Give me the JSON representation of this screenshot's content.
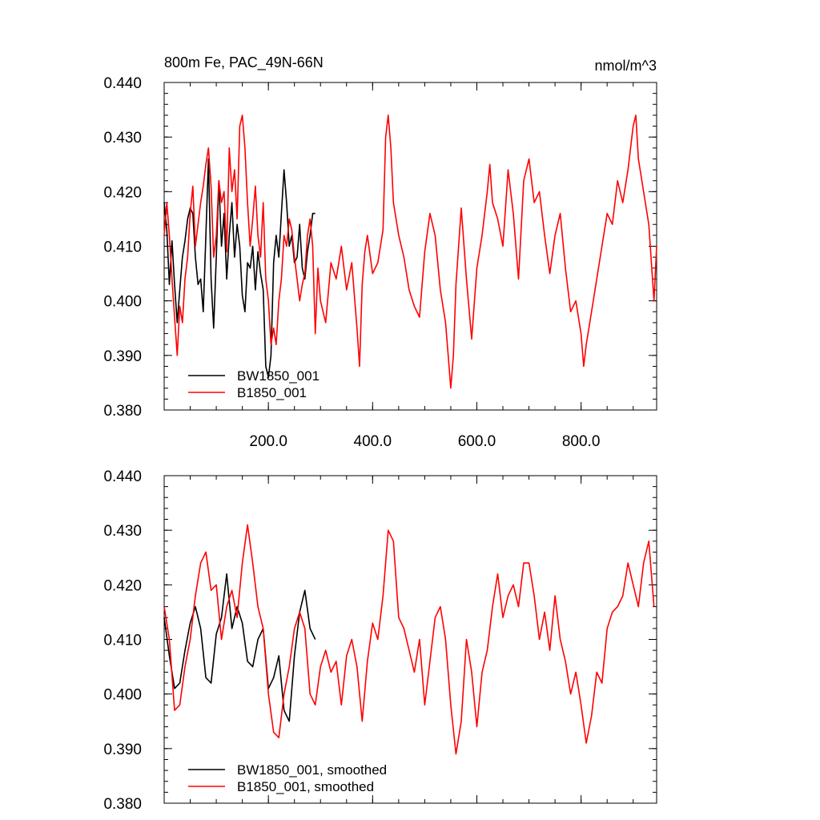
{
  "chart_data": [
    {
      "type": "line",
      "title": "800m Fe, PAC_49N-66N",
      "units": "nmol/m^3",
      "xlim": [
        0,
        945
      ],
      "ylim": [
        0.38,
        0.44
      ],
      "x_ticks": [
        200,
        400,
        600,
        800
      ],
      "x_tick_labels": [
        "200.0",
        "400.0",
        "600.0",
        "800.0"
      ],
      "y_ticks": [
        0.38,
        0.39,
        0.4,
        0.41,
        0.42,
        0.43,
        0.44
      ],
      "y_tick_labels": [
        "0.380",
        "0.390",
        "0.400",
        "0.410",
        "0.420",
        "0.430",
        "0.440"
      ],
      "grid": false,
      "legend_position": "bottom-left",
      "series": [
        {
          "name": "BW1850_001",
          "color": "#000000",
          "x": [
            0,
            5,
            10,
            15,
            20,
            25,
            30,
            35,
            40,
            45,
            50,
            55,
            60,
            65,
            70,
            75,
            80,
            85,
            90,
            95,
            100,
            105,
            110,
            115,
            120,
            125,
            130,
            135,
            140,
            145,
            150,
            155,
            160,
            165,
            170,
            175,
            180,
            185,
            190,
            195,
            200,
            205,
            210,
            215,
            220,
            225,
            230,
            235,
            240,
            245,
            250,
            255,
            260,
            265,
            270,
            275,
            280,
            285,
            290
          ],
          "values": [
            0.418,
            0.413,
            0.403,
            0.411,
            0.403,
            0.396,
            0.402,
            0.408,
            0.411,
            0.415,
            0.417,
            0.416,
            0.408,
            0.403,
            0.404,
            0.398,
            0.412,
            0.426,
            0.404,
            0.395,
            0.408,
            0.422,
            0.41,
            0.416,
            0.404,
            0.412,
            0.418,
            0.408,
            0.414,
            0.41,
            0.401,
            0.398,
            0.407,
            0.406,
            0.41,
            0.402,
            0.409,
            0.405,
            0.402,
            0.388,
            0.386,
            0.39,
            0.407,
            0.412,
            0.408,
            0.416,
            0.424,
            0.418,
            0.41,
            0.412,
            0.407,
            0.408,
            0.414,
            0.406,
            0.404,
            0.409,
            0.412,
            0.416,
            0.416
          ]
        },
        {
          "name": "B1850_001",
          "color": "#ff0000",
          "x": [
            0,
            5,
            10,
            15,
            20,
            25,
            30,
            35,
            40,
            45,
            50,
            55,
            60,
            65,
            70,
            75,
            80,
            85,
            90,
            95,
            100,
            105,
            110,
            115,
            120,
            125,
            130,
            135,
            140,
            145,
            150,
            155,
            160,
            165,
            170,
            175,
            180,
            185,
            190,
            195,
            200,
            205,
            210,
            215,
            220,
            225,
            230,
            235,
            240,
            245,
            250,
            255,
            260,
            265,
            270,
            275,
            280,
            285,
            290,
            295,
            300,
            310,
            320,
            330,
            340,
            350,
            360,
            370,
            375,
            380,
            385,
            390,
            400,
            410,
            420,
            425,
            430,
            435,
            440,
            450,
            460,
            470,
            480,
            490,
            500,
            510,
            520,
            530,
            540,
            545,
            550,
            555,
            560,
            565,
            570,
            580,
            590,
            600,
            610,
            620,
            625,
            630,
            640,
            650,
            660,
            670,
            680,
            690,
            700,
            710,
            720,
            730,
            740,
            750,
            760,
            770,
            780,
            790,
            800,
            805,
            810,
            820,
            830,
            840,
            850,
            860,
            870,
            880,
            890,
            900,
            905,
            910,
            920,
            930,
            940,
            945
          ],
          "values": [
            0.412,
            0.418,
            0.412,
            0.404,
            0.397,
            0.39,
            0.399,
            0.396,
            0.404,
            0.408,
            0.416,
            0.421,
            0.41,
            0.414,
            0.418,
            0.421,
            0.425,
            0.428,
            0.421,
            0.408,
            0.412,
            0.422,
            0.418,
            0.42,
            0.409,
            0.428,
            0.42,
            0.424,
            0.415,
            0.432,
            0.434,
            0.428,
            0.418,
            0.41,
            0.415,
            0.421,
            0.412,
            0.408,
            0.418,
            0.404,
            0.4,
            0.392,
            0.395,
            0.392,
            0.4,
            0.404,
            0.412,
            0.41,
            0.415,
            0.413,
            0.408,
            0.404,
            0.4,
            0.403,
            0.405,
            0.412,
            0.415,
            0.41,
            0.394,
            0.406,
            0.4,
            0.396,
            0.407,
            0.404,
            0.41,
            0.402,
            0.407,
            0.395,
            0.388,
            0.403,
            0.409,
            0.412,
            0.405,
            0.407,
            0.413,
            0.43,
            0.434,
            0.428,
            0.418,
            0.412,
            0.408,
            0.402,
            0.399,
            0.397,
            0.409,
            0.416,
            0.412,
            0.402,
            0.396,
            0.39,
            0.384,
            0.39,
            0.403,
            0.41,
            0.417,
            0.404,
            0.393,
            0.406,
            0.412,
            0.42,
            0.425,
            0.418,
            0.415,
            0.41,
            0.424,
            0.416,
            0.404,
            0.422,
            0.426,
            0.418,
            0.42,
            0.412,
            0.405,
            0.412,
            0.416,
            0.406,
            0.398,
            0.4,
            0.394,
            0.388,
            0.392,
            0.398,
            0.404,
            0.41,
            0.416,
            0.414,
            0.422,
            0.418,
            0.424,
            0.432,
            0.434,
            0.426,
            0.42,
            0.414,
            0.4,
            0.41
          ]
        }
      ]
    },
    {
      "type": "line",
      "title": "",
      "xlim": [
        0,
        945
      ],
      "ylim": [
        0.38,
        0.44
      ],
      "x_ticks": [
        200,
        400,
        600,
        800
      ],
      "x_tick_labels": [],
      "y_ticks": [
        0.38,
        0.39,
        0.4,
        0.41,
        0.42,
        0.43,
        0.44
      ],
      "y_tick_labels": [
        "0.380",
        "0.390",
        "0.400",
        "0.410",
        "0.420",
        "0.430",
        "0.440"
      ],
      "grid": false,
      "legend_position": "bottom-left",
      "series": [
        {
          "name": "BW1850_001, smoothed",
          "color": "#000000",
          "x": [
            0,
            10,
            20,
            30,
            40,
            50,
            60,
            70,
            80,
            90,
            100,
            110,
            120,
            130,
            140,
            150,
            160,
            170,
            180,
            190,
            200,
            210,
            220,
            230,
            240,
            250,
            260,
            270,
            280,
            290
          ],
          "values": [
            0.414,
            0.407,
            0.401,
            0.402,
            0.408,
            0.413,
            0.416,
            0.412,
            0.403,
            0.402,
            0.411,
            0.414,
            0.422,
            0.412,
            0.416,
            0.413,
            0.406,
            0.405,
            0.41,
            0.412,
            0.401,
            0.403,
            0.407,
            0.397,
            0.395,
            0.407,
            0.415,
            0.419,
            0.412,
            0.41
          ]
        },
        {
          "name": "B1850_001, smoothed",
          "color": "#ff0000",
          "x": [
            0,
            10,
            20,
            30,
            40,
            50,
            60,
            70,
            80,
            90,
            100,
            110,
            120,
            130,
            140,
            150,
            160,
            170,
            180,
            190,
            200,
            210,
            220,
            230,
            240,
            250,
            260,
            270,
            280,
            290,
            300,
            310,
            320,
            330,
            340,
            350,
            360,
            370,
            380,
            390,
            400,
            410,
            420,
            430,
            440,
            450,
            460,
            470,
            480,
            490,
            500,
            510,
            520,
            530,
            540,
            550,
            560,
            570,
            580,
            590,
            600,
            610,
            620,
            630,
            640,
            650,
            660,
            670,
            680,
            690,
            700,
            710,
            720,
            730,
            740,
            750,
            760,
            770,
            780,
            790,
            800,
            810,
            820,
            830,
            840,
            850,
            860,
            870,
            880,
            890,
            900,
            910,
            920,
            930,
            940
          ],
          "values": [
            0.416,
            0.41,
            0.397,
            0.398,
            0.405,
            0.41,
            0.418,
            0.424,
            0.426,
            0.419,
            0.42,
            0.41,
            0.416,
            0.419,
            0.414,
            0.424,
            0.431,
            0.424,
            0.416,
            0.412,
            0.4,
            0.393,
            0.392,
            0.4,
            0.405,
            0.412,
            0.415,
            0.412,
            0.4,
            0.398,
            0.405,
            0.408,
            0.404,
            0.406,
            0.398,
            0.407,
            0.41,
            0.405,
            0.395,
            0.406,
            0.413,
            0.41,
            0.418,
            0.43,
            0.428,
            0.414,
            0.412,
            0.408,
            0.404,
            0.41,
            0.398,
            0.406,
            0.414,
            0.416,
            0.41,
            0.398,
            0.389,
            0.395,
            0.41,
            0.404,
            0.394,
            0.404,
            0.408,
            0.416,
            0.422,
            0.414,
            0.418,
            0.42,
            0.416,
            0.424,
            0.424,
            0.418,
            0.41,
            0.415,
            0.408,
            0.418,
            0.41,
            0.406,
            0.4,
            0.404,
            0.398,
            0.391,
            0.396,
            0.404,
            0.402,
            0.412,
            0.415,
            0.416,
            0.418,
            0.424,
            0.42,
            0.416,
            0.424,
            0.428,
            0.416
          ]
        }
      ]
    }
  ]
}
